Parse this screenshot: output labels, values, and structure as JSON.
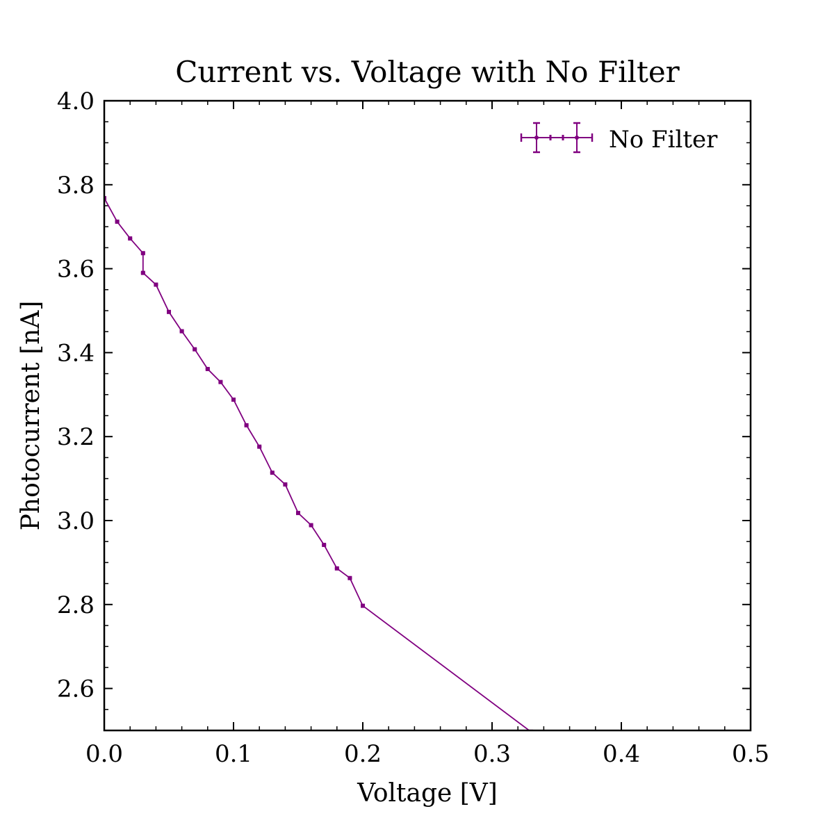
{
  "chart_data": {
    "type": "line",
    "title": "Current vs. Voltage with No Filter",
    "xlabel": "Voltage [V]",
    "ylabel": "Photocurrent [nA]",
    "xlim": [
      0.0,
      0.5
    ],
    "ylim": [
      2.5,
      4.0
    ],
    "x_ticks": [
      0.0,
      0.1,
      0.2,
      0.3,
      0.4,
      0.5
    ],
    "x_tick_labels": [
      "0.0",
      "0.1",
      "0.2",
      "0.3",
      "0.4",
      "0.5"
    ],
    "y_ticks": [
      2.6,
      2.8,
      3.0,
      3.2,
      3.4,
      3.6,
      3.8,
      4.0
    ],
    "y_tick_labels": [
      "2.6",
      "2.8",
      "3.0",
      "3.2",
      "3.4",
      "3.6",
      "3.8",
      "4.0"
    ],
    "grid": false,
    "legend_position": "top-right",
    "series": [
      {
        "name": "No Filter",
        "color": "#800080",
        "marker": "point",
        "error_bars": true,
        "x": [
          0.0,
          0.01,
          0.02,
          0.03,
          0.03,
          0.04,
          0.05,
          0.06,
          0.07,
          0.08,
          0.09,
          0.1,
          0.11,
          0.12,
          0.13,
          0.14,
          0.15,
          0.16,
          0.17,
          0.18,
          0.19,
          0.2,
          0.33
        ],
        "y": [
          3.768,
          3.712,
          3.672,
          3.637,
          3.59,
          3.562,
          3.497,
          3.451,
          3.408,
          3.361,
          3.33,
          3.288,
          3.227,
          3.176,
          3.114,
          3.086,
          3.018,
          2.989,
          2.942,
          2.886,
          2.863,
          2.797,
          2.497
        ]
      }
    ]
  }
}
